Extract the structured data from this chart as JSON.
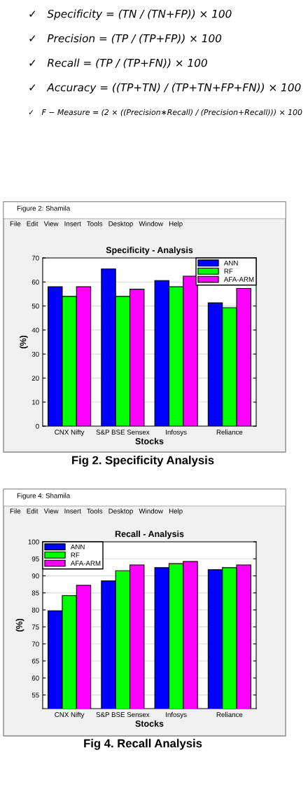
{
  "chart_data": [
    {
      "type": "bar",
      "title": "Specificity - Analysis",
      "xlabel": "Stocks",
      "ylabel": "(%)",
      "categories": [
        "CNX Nifty",
        "S&P BSE Sensex",
        "Infosys",
        "Reliance"
      ],
      "series": [
        {
          "name": "ANN",
          "color": "#0000ff",
          "values": [
            58,
            65.4,
            60.6,
            51.3
          ]
        },
        {
          "name": "RF",
          "color": "#00ff00",
          "values": [
            54,
            54,
            58,
            49.3
          ]
        },
        {
          "name": "AFA-ARM",
          "color": "#ff00ff",
          "values": [
            58,
            57,
            62.4,
            57.3
          ]
        }
      ],
      "ylim": [
        0,
        70
      ],
      "yticks": [
        0,
        10,
        20,
        30,
        40,
        50,
        60,
        70
      ],
      "grid": "y",
      "legend": "top right",
      "annotations": [
        "✓   Specificity = (TN / (TN+FP)) × 100",
        "✓   Precision = (TP / (TP+FP)) × 100",
        "✓   Recall = (TP / (TP+FN)) × 100",
        "✓   Accuracy = ((TP+TN) / (TP+TN+FP+FN)) × 100",
        "✓   F − Measure = (2 × ((Precision∗Recall) / (Precision+Recall))) × 100",
        "Figure 2: Shamila",
        "File   Edit   View   Insert   Tools   Desktop   Window   Help",
        "Fig 2. Specificity Analysis"
      ]
    },
    {
      "type": "bar",
      "title": "Recall - Analysis",
      "xlabel": "Stocks",
      "ylabel": "(%)",
      "categories": [
        "CNX Nifty",
        "S&P BSE Sensex",
        "Infosys",
        "Reliance"
      ],
      "series": [
        {
          "name": "ANN",
          "color": "#0000ff",
          "values": [
            79.7,
            88.5,
            92.4,
            91.8
          ]
        },
        {
          "name": "RF",
          "color": "#00ff00",
          "values": [
            84.2,
            91.5,
            93.6,
            92.4
          ]
        },
        {
          "name": "AFA-ARM",
          "color": "#ff00ff",
          "values": [
            87.2,
            93.2,
            94.2,
            93.2
          ]
        }
      ],
      "ylim": [
        51,
        100
      ],
      "yticks": [
        55,
        60,
        65,
        70,
        75,
        80,
        85,
        90,
        95,
        100
      ],
      "grid": "y",
      "legend": "top left",
      "annotations": [
        "Figure 4: Shamila",
        "File   Edit   View   Insert   Tools   Desktop   Window   Help",
        "Fig 4. Recall Analysis"
      ]
    }
  ]
}
